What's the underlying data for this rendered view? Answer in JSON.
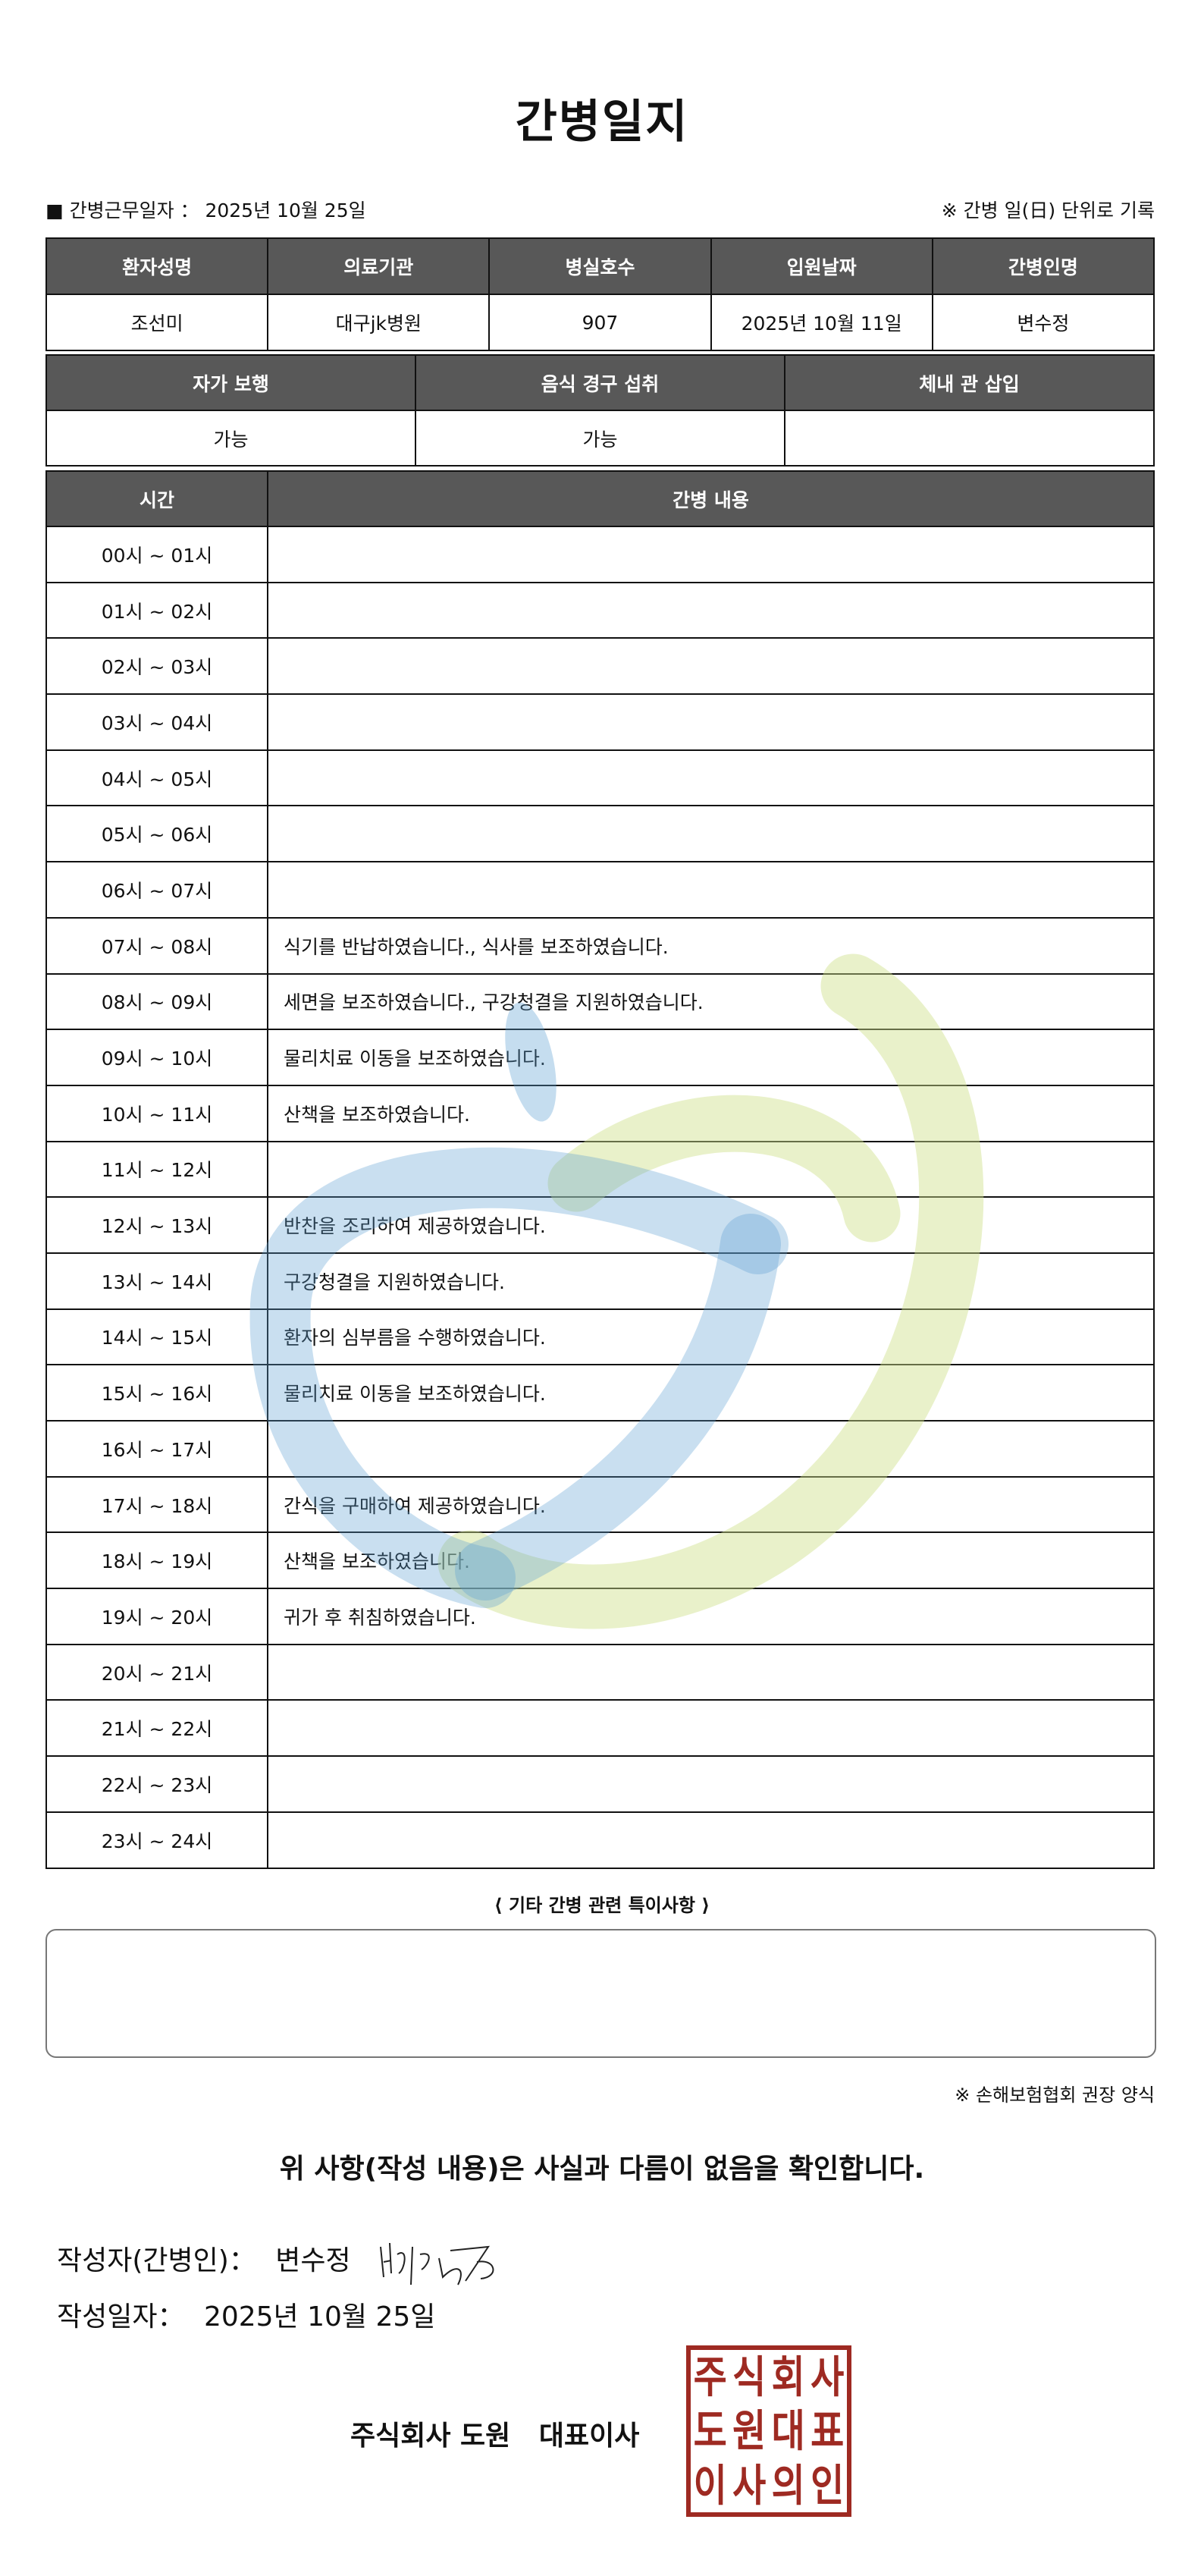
{
  "title": "간병일지",
  "info": {
    "work_date_label": "■ 간병근무일자 ：",
    "work_date": "2025년 10월 25일",
    "note": "※ 간병 일(日) 단위로 기록"
  },
  "patient_table": {
    "headers": [
      "환자성명",
      "의료기관",
      "병실호수",
      "입원날짜",
      "간병인명"
    ],
    "values": [
      "조선미",
      "대구jk병원",
      "907",
      "2025년 10월 11일",
      "변수정"
    ]
  },
  "status_table": {
    "headers": [
      "자가 보행",
      "음식 경구 섭취",
      "체내 관 삽입"
    ],
    "values": [
      "가능",
      "가능",
      ""
    ]
  },
  "log_table": {
    "headers": [
      "시간",
      "간병 내용"
    ],
    "rows": [
      {
        "time": "00시 ~ 01시",
        "content": ""
      },
      {
        "time": "01시 ~ 02시",
        "content": ""
      },
      {
        "time": "02시 ~ 03시",
        "content": ""
      },
      {
        "time": "03시 ~ 04시",
        "content": ""
      },
      {
        "time": "04시 ~ 05시",
        "content": ""
      },
      {
        "time": "05시 ~ 06시",
        "content": ""
      },
      {
        "time": "06시 ~ 07시",
        "content": ""
      },
      {
        "time": "07시 ~ 08시",
        "content": "식기를 반납하였습니다., 식사를 보조하였습니다."
      },
      {
        "time": "08시 ~ 09시",
        "content": "세면을 보조하였습니다., 구강청결을 지원하였습니다."
      },
      {
        "time": "09시 ~ 10시",
        "content": "물리치료 이동을 보조하였습니다."
      },
      {
        "time": "10시 ~ 11시",
        "content": "산책을 보조하였습니다."
      },
      {
        "time": "11시 ~ 12시",
        "content": ""
      },
      {
        "time": "12시 ~ 13시",
        "content": "반찬을 조리하여 제공하였습니다."
      },
      {
        "time": "13시 ~ 14시",
        "content": "구강청결을 지원하였습니다."
      },
      {
        "time": "14시 ~ 15시",
        "content": "환자의 심부름을 수행하였습니다."
      },
      {
        "time": "15시 ~ 16시",
        "content": "물리치료 이동을 보조하였습니다."
      },
      {
        "time": "16시 ~ 17시",
        "content": ""
      },
      {
        "time": "17시 ~ 18시",
        "content": "간식을 구매하여 제공하였습니다."
      },
      {
        "time": "18시 ~ 19시",
        "content": "산책을 보조하였습니다."
      },
      {
        "time": "19시 ~ 20시",
        "content": "귀가 후 취침하였습니다."
      },
      {
        "time": "20시 ~ 21시",
        "content": ""
      },
      {
        "time": "21시 ~ 22시",
        "content": ""
      },
      {
        "time": "22시 ~ 23시",
        "content": ""
      },
      {
        "time": "23시 ~ 24시",
        "content": ""
      }
    ]
  },
  "notes": {
    "title": "⟨ 기타 간병 관련 특이사항 ⟩",
    "value": ""
  },
  "recommend": "※ 손해보험협회 권장 양식",
  "confirm": "위 사항(작성 내용)은 사실과 다름이 없음을 확인합니다.",
  "writer": {
    "label": "작성자(간병인)：",
    "name": "변수정",
    "signature": "변수정"
  },
  "written_date": {
    "label": "작성일자：",
    "value": "2025년 10월 25일"
  },
  "company": "주식회사 도원   대표이사",
  "stamp": {
    "text": "주식회사도원대표이사의인",
    "color": "#9e2a22"
  },
  "colors": {
    "header_bg": "#585858",
    "watermark_blue": "#5a9fd0",
    "watermark_green": "#cfe08a"
  }
}
